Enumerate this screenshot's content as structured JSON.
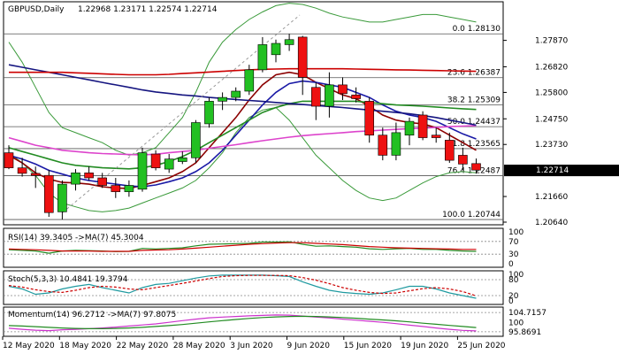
{
  "chart_data": {
    "type": "candlestick",
    "symbol_label": "GBPUSD,Daily",
    "ohlc_label": "1.22968 1.23171 1.22574 1.22714",
    "current_price": "1.22714",
    "price_range": [
      1.2057,
      1.2937
    ],
    "price_ticks": [
      "1.27870",
      "1.26820",
      "1.25800",
      "1.24750",
      "1.23730",
      "1.22714",
      "1.21660",
      "1.20640"
    ],
    "x_tick_labels": [
      "12 May 2020",
      "18 May 2020",
      "22 May 2020",
      "28 May 2020",
      "3 Jun 2020",
      "9 Jun 2020",
      "15 Jun 2020",
      "19 Jun 2020",
      "25 Jun 2020"
    ],
    "fibonacci": [
      {
        "label": "0.0 1.28130",
        "price": 1.2813
      },
      {
        "label": "23.6 1.26387",
        "price": 1.26387
      },
      {
        "label": "38.2 1.25309",
        "price": 1.25309
      },
      {
        "label": "50.0 1.24437",
        "price": 1.24437
      },
      {
        "label": "61.8 1.23565",
        "price": 1.23565
      },
      {
        "label": "76.4 1.22487",
        "price": 1.22487
      },
      {
        "label": "100.0 1.20744",
        "price": 1.20744
      }
    ],
    "candles": [
      {
        "o": 1.234,
        "h": 1.237,
        "l": 1.2275,
        "c": 1.228
      },
      {
        "o": 1.228,
        "h": 1.232,
        "l": 1.2245,
        "c": 1.2258
      },
      {
        "o": 1.2258,
        "h": 1.2285,
        "l": 1.22,
        "c": 1.225
      },
      {
        "o": 1.225,
        "h": 1.2272,
        "l": 1.2085,
        "c": 1.2102
      },
      {
        "o": 1.2105,
        "h": 1.223,
        "l": 1.2075,
        "c": 1.2215
      },
      {
        "o": 1.2215,
        "h": 1.2275,
        "l": 1.219,
        "c": 1.226
      },
      {
        "o": 1.226,
        "h": 1.2285,
        "l": 1.223,
        "c": 1.224
      },
      {
        "o": 1.224,
        "h": 1.226,
        "l": 1.22,
        "c": 1.221
      },
      {
        "o": 1.221,
        "h": 1.224,
        "l": 1.216,
        "c": 1.2185
      },
      {
        "o": 1.2185,
        "h": 1.223,
        "l": 1.2165,
        "c": 1.221
      },
      {
        "o": 1.2195,
        "h": 1.236,
        "l": 1.2185,
        "c": 1.234
      },
      {
        "o": 1.2335,
        "h": 1.235,
        "l": 1.227,
        "c": 1.228
      },
      {
        "o": 1.2275,
        "h": 1.2335,
        "l": 1.226,
        "c": 1.2315
      },
      {
        "o": 1.2305,
        "h": 1.2345,
        "l": 1.2295,
        "c": 1.232
      },
      {
        "o": 1.232,
        "h": 1.247,
        "l": 1.23,
        "c": 1.246
      },
      {
        "o": 1.2455,
        "h": 1.256,
        "l": 1.244,
        "c": 1.2545
      },
      {
        "o": 1.2545,
        "h": 1.258,
        "l": 1.251,
        "c": 1.256
      },
      {
        "o": 1.256,
        "h": 1.26,
        "l": 1.2545,
        "c": 1.2585
      },
      {
        "o": 1.2585,
        "h": 1.269,
        "l": 1.257,
        "c": 1.267
      },
      {
        "o": 1.267,
        "h": 1.28,
        "l": 1.266,
        "c": 1.277
      },
      {
        "o": 1.273,
        "h": 1.279,
        "l": 1.27,
        "c": 1.2775
      },
      {
        "o": 1.277,
        "h": 1.2813,
        "l": 1.2745,
        "c": 1.279
      },
      {
        "o": 1.28,
        "h": 1.2805,
        "l": 1.257,
        "c": 1.264
      },
      {
        "o": 1.26,
        "h": 1.262,
        "l": 1.247,
        "c": 1.2525
      },
      {
        "o": 1.2525,
        "h": 1.266,
        "l": 1.248,
        "c": 1.261
      },
      {
        "o": 1.261,
        "h": 1.264,
        "l": 1.255,
        "c": 1.2575
      },
      {
        "o": 1.257,
        "h": 1.26,
        "l": 1.254,
        "c": 1.2555
      },
      {
        "o": 1.2545,
        "h": 1.256,
        "l": 1.238,
        "c": 1.241
      },
      {
        "o": 1.241,
        "h": 1.244,
        "l": 1.231,
        "c": 1.233
      },
      {
        "o": 1.233,
        "h": 1.246,
        "l": 1.231,
        "c": 1.242
      },
      {
        "o": 1.241,
        "h": 1.248,
        "l": 1.237,
        "c": 1.2465
      },
      {
        "o": 1.249,
        "h": 1.2505,
        "l": 1.239,
        "c": 1.24
      },
      {
        "o": 1.241,
        "h": 1.244,
        "l": 1.238,
        "c": 1.24
      },
      {
        "o": 1.239,
        "h": 1.242,
        "l": 1.23,
        "c": 1.231
      },
      {
        "o": 1.233,
        "h": 1.236,
        "l": 1.227,
        "c": 1.2295
      },
      {
        "o": 1.2297,
        "h": 1.2317,
        "l": 1.2257,
        "c": 1.2271
      }
    ],
    "moving_averages": [
      {
        "color": "#8b0000",
        "values": [
          1.233,
          1.23,
          1.226,
          1.2235,
          1.2222,
          1.222,
          1.2215,
          1.2205,
          1.22,
          1.2198,
          1.221,
          1.2225,
          1.224,
          1.2265,
          1.23,
          1.236,
          1.242,
          1.248,
          1.255,
          1.261,
          1.265,
          1.266,
          1.265,
          1.262,
          1.2595,
          1.257,
          1.2555,
          1.2525,
          1.249,
          1.247,
          1.246,
          1.2455,
          1.244,
          1.241,
          1.238,
          1.235
        ]
      },
      {
        "color": "#1a1aa6",
        "values": [
          1.233,
          1.2315,
          1.2295,
          1.227,
          1.2255,
          1.224,
          1.223,
          1.2222,
          1.2215,
          1.2208,
          1.2205,
          1.2212,
          1.2225,
          1.224,
          1.2265,
          1.23,
          1.235,
          1.241,
          1.247,
          1.253,
          1.258,
          1.2615,
          1.2625,
          1.262,
          1.261,
          1.26,
          1.258,
          1.256,
          1.253,
          1.2505,
          1.249,
          1.248,
          1.2465,
          1.244,
          1.2415,
          1.2395
        ]
      },
      {
        "color": "#228b22",
        "values": [
          1.236,
          1.2345,
          1.233,
          1.2315,
          1.23,
          1.229,
          1.2285,
          1.228,
          1.2278,
          1.2276,
          1.228,
          1.229,
          1.2305,
          1.2325,
          1.235,
          1.238,
          1.241,
          1.244,
          1.247,
          1.25,
          1.252,
          1.2535,
          1.2545,
          1.2545,
          1.2545,
          1.2545,
          1.2545,
          1.254,
          1.2535,
          1.253,
          1.2528,
          1.2525,
          1.2522,
          1.2518,
          1.2515,
          1.2512
        ]
      },
      {
        "color": "#dd44cc",
        "values": [
          1.24,
          1.2385,
          1.237,
          1.236,
          1.235,
          1.2345,
          1.234,
          1.2337,
          1.2335,
          1.2333,
          1.2332,
          1.2334,
          1.234,
          1.2345,
          1.235,
          1.2358,
          1.2365,
          1.2372,
          1.238,
          1.2388,
          1.2395,
          1.2402,
          1.2408,
          1.2412,
          1.2416,
          1.242,
          1.2424,
          1.2427,
          1.243,
          1.2433,
          1.2436,
          1.2438,
          1.2441,
          1.2444,
          1.2446,
          1.2448
        ]
      },
      {
        "color": "#151580",
        "values": [
          1.269,
          1.268,
          1.267,
          1.266,
          1.265,
          1.264,
          1.263,
          1.262,
          1.261,
          1.26,
          1.259,
          1.2582,
          1.2576,
          1.257,
          1.2566,
          1.256,
          1.2556,
          1.2552,
          1.2548,
          1.2544,
          1.254,
          1.2536,
          1.2532,
          1.2528,
          1.2524,
          1.252,
          1.2515,
          1.251,
          1.2505,
          1.25,
          1.2495,
          1.2488,
          1.248,
          1.247,
          1.246,
          1.245
        ]
      },
      {
        "color": "#cc0000",
        "values": [
          1.266,
          1.266,
          1.266,
          1.266,
          1.266,
          1.2658,
          1.2656,
          1.2654,
          1.2652,
          1.265,
          1.265,
          1.265,
          1.2652,
          1.2655,
          1.2658,
          1.2661,
          1.2664,
          1.2667,
          1.267,
          1.2672,
          1.2673,
          1.2674,
          1.2674,
          1.2674,
          1.2674,
          1.2674,
          1.2673,
          1.2672,
          1.2671,
          1.267,
          1.2669,
          1.2668,
          1.2667,
          1.2666,
          1.2665,
          1.2664
        ]
      }
    ],
    "bollinger": {
      "color": "#3a9a3a",
      "upper": [
        1.278,
        1.27,
        1.26,
        1.25,
        1.244,
        1.242,
        1.24,
        1.238,
        1.235,
        1.233,
        1.234,
        1.236,
        1.242,
        1.248,
        1.258,
        1.27,
        1.278,
        1.283,
        1.287,
        1.29,
        1.2925,
        1.2935,
        1.293,
        1.2915,
        1.2895,
        1.288,
        1.287,
        1.286,
        1.286,
        1.287,
        1.288,
        1.289,
        1.289,
        1.288,
        1.287,
        1.286
      ],
      "lower": [
        1.234,
        1.23,
        1.225,
        1.218,
        1.214,
        1.2125,
        1.211,
        1.2105,
        1.211,
        1.212,
        1.214,
        1.216,
        1.218,
        1.22,
        1.223,
        1.228,
        1.234,
        1.242,
        1.248,
        1.251,
        1.252,
        1.247,
        1.24,
        1.233,
        1.228,
        1.223,
        1.219,
        1.216,
        1.215,
        1.216,
        1.219,
        1.222,
        1.2245,
        1.226,
        1.2265,
        1.226
      ]
    },
    "panels": [
      {
        "title": "RSI(14) 39.3405 ->MA(7) 45.3004",
        "range": [
          0,
          100
        ],
        "levels": [
          {
            "label": "100",
            "value": 100
          },
          {
            "label": "70",
            "value": 70
          },
          {
            "label": "30",
            "value": 30
          },
          {
            "label": "0",
            "value": 0
          }
        ],
        "series": [
          {
            "color": "#228b22",
            "values": [
              44,
              42,
              40,
              33,
              40,
              42,
              41,
              40,
              38,
              39,
              48,
              46,
              48,
              50,
              56,
              61,
              62,
              63,
              64,
              68,
              68,
              69,
              61,
              55,
              56,
              54,
              52,
              47,
              45,
              47,
              48,
              45,
              45,
              42,
              40,
              39
            ]
          },
          {
            "color": "#cc0000",
            "values": [
              46,
              45,
              44,
              42,
              40,
              40,
              40,
              39,
              39,
              39,
              42,
              43,
              44,
              46,
              49,
              52,
              55,
              58,
              61,
              63,
              65,
              66,
              66,
              64,
              62,
              60,
              57,
              54,
              52,
              50,
              49,
              48,
              47,
              46,
              45,
              45
            ]
          }
        ]
      },
      {
        "title": "Stoch(5,3,3) 10.4841 19.3794",
        "range": [
          0,
          100
        ],
        "levels": [
          {
            "label": "100",
            "value": 100
          },
          {
            "label": "80",
            "value": 80
          },
          {
            "label": "20",
            "value": 20
          },
          {
            "label": "0",
            "value": 0
          }
        ],
        "series": [
          {
            "color": "#1f9aa0",
            "values": [
              55,
              45,
              25,
              30,
              45,
              55,
              62,
              50,
              40,
              30,
              50,
              62,
              66,
              76,
              86,
              94,
              97,
              97,
              97,
              97,
              95,
              92,
              72,
              55,
              40,
              32,
              28,
              25,
              30,
              42,
              55,
              55,
              45,
              30,
              20,
              10
            ]
          },
          {
            "color": "#cc0000",
            "dashed": true,
            "values": [
              58,
              52,
              42,
              35,
              32,
              40,
              50,
              55,
              52,
              45,
              42,
              50,
              58,
              66,
              75,
              84,
              92,
              95,
              96,
              96,
              96,
              95,
              88,
              78,
              65,
              50,
              40,
              32,
              28,
              30,
              38,
              46,
              50,
              45,
              35,
              19
            ]
          }
        ]
      },
      {
        "title": "Momentum(14) 96.2712 ->MA(7) 97.8075",
        "range": [
          95.0,
          106.0
        ],
        "levels": [
          {
            "label": "104.7157",
            "value": 104.7157
          },
          {
            "label": "100",
            "value": 100
          },
          {
            "label": "95.8691",
            "value": 95.8691
          }
        ],
        "series": [
          {
            "color": "#cc33cc",
            "values": [
              97.5,
              97.0,
              96.6,
              96.4,
              96.8,
              97.0,
              97.3,
              97.6,
              98.0,
              98.5,
              99.0,
              99.5,
              100.2,
              101.0,
              101.7,
              102.3,
              102.6,
              102.9,
              103.2,
              103.4,
              103.6,
              103.5,
              103.1,
              102.6,
              102.2,
              101.7,
              101.2,
              100.7,
              100.2,
              99.6,
              98.9,
              98.3,
              97.6,
              97.0,
              96.5,
              96.27
            ]
          },
          {
            "color": "#228b22",
            "values": [
              98.7,
              98.5,
              98.2,
              97.9,
              97.6,
              97.4,
              97.3,
              97.3,
              97.4,
              97.6,
              97.9,
              98.3,
              98.7,
              99.2,
              99.8,
              100.4,
              101.0,
              101.5,
              102.0,
              102.4,
              102.7,
              102.9,
              103.0,
              102.9,
              102.7,
              102.4,
              102.1,
              101.7,
              101.3,
              100.9,
              100.4,
              99.8,
              99.3,
              98.8,
              98.3,
              97.81
            ]
          }
        ]
      }
    ]
  }
}
